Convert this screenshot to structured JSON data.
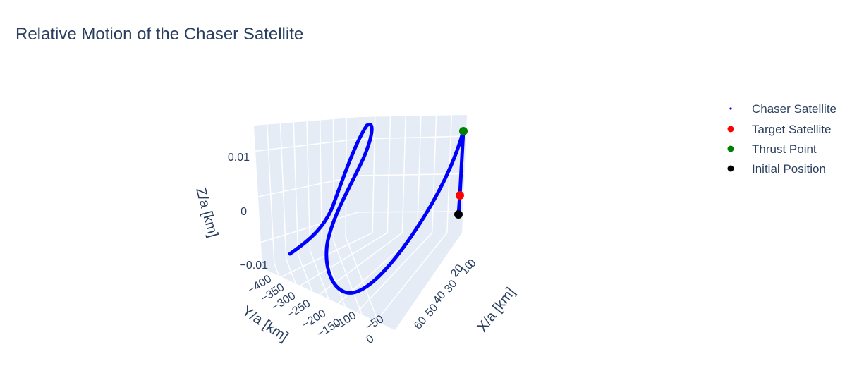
{
  "chart_data": {
    "type": "scatter3d",
    "title": "Relative Motion of the Chaser Satellite",
    "axes": {
      "x": {
        "title": "X/a [km]",
        "ticks": [
          "0",
          "10",
          "20",
          "30",
          "40",
          "50",
          "60"
        ]
      },
      "y": {
        "title": "Y/a [km]",
        "ticks": [
          "−400",
          "−350",
          "−300",
          "−250",
          "−200",
          "−150",
          "−100",
          "−50",
          "0"
        ]
      },
      "z": {
        "title": "Z/a [km]",
        "ticks": [
          "0.01",
          "0",
          "−0.01"
        ]
      }
    },
    "legend": {
      "placement": "right",
      "entries": [
        {
          "name": "Chaser Satellite",
          "color": "#0000ff",
          "marker": "small-dot"
        },
        {
          "name": "Target Satellite",
          "color": "#ff0000",
          "marker": "dot"
        },
        {
          "name": "Thrust Point",
          "color": "#008000",
          "marker": "dot"
        },
        {
          "name": "Initial Position",
          "color": "#000000",
          "marker": "dot"
        }
      ]
    },
    "colors": {
      "scene_background": "#e5ecf6",
      "gridline": "#ffffff",
      "trajectory": "#0000ff"
    }
  }
}
